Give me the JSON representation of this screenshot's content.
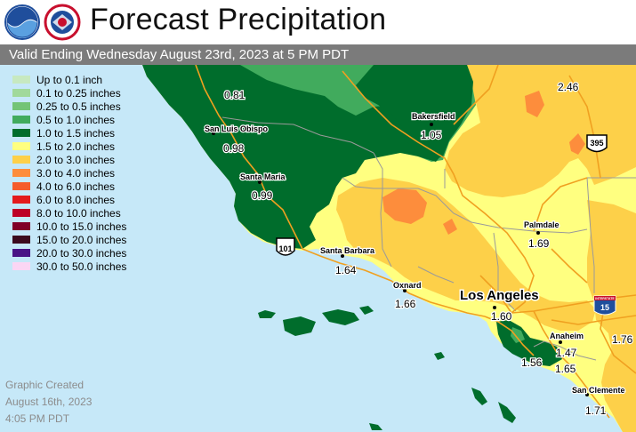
{
  "title": "Forecast Precipitation",
  "valid_text": "Valid Ending Wednesday August 23rd, 2023 at 5 PM PDT",
  "logos": {
    "left": "noaa-logo",
    "right": "nws-logo"
  },
  "legend": [
    {
      "label": "Up to 0.1 inch",
      "color": "#c7e9c0"
    },
    {
      "label": "0.1 to 0.25 inches",
      "color": "#a1d99b"
    },
    {
      "label": "0.25 to 0.5 inches",
      "color": "#74c476"
    },
    {
      "label": "0.5 to 1.0 inches",
      "color": "#41ab5d"
    },
    {
      "label": "1.0 to 1.5 inches",
      "color": "#006d2c"
    },
    {
      "label": "1.5 to 2.0 inches",
      "color": "#ffff80"
    },
    {
      "label": "2.0 to 3.0 inches",
      "color": "#fdd049"
    },
    {
      "label": "3.0 to 4.0 inches",
      "color": "#fd8d3c"
    },
    {
      "label": "4.0 to 6.0 inches",
      "color": "#f55c2b"
    },
    {
      "label": "6.0 to 8.0 inches",
      "color": "#e31a1c"
    },
    {
      "label": "8.0 to 10.0 inches",
      "color": "#bd0026"
    },
    {
      "label": "10.0 to 15.0 inches",
      "color": "#800026"
    },
    {
      "label": "15.0 to 20.0 inches",
      "color": "#3b0a1e"
    },
    {
      "label": "20.0 to 30.0 inches",
      "color": "#4a1486"
    },
    {
      "label": "30.0 to 50.0 inches",
      "color": "#fbd6f4"
    }
  ],
  "created": [
    "Graphic Created",
    "August 16th, 2023",
    "4:05 PM PDT"
  ],
  "cities": {
    "san_luis_obispo": "San Luis Obispo",
    "santa_maria": "Santa Maria",
    "bakersfield": "Bakersfield",
    "santa_barbara": "Santa Barbara",
    "palmdale": "Palmdale",
    "oxnard": "Oxnard",
    "los_angeles": "Los Angeles",
    "anaheim": "Anaheim",
    "san_clemente": "San Clemente"
  },
  "values": {
    "v1": "0.81",
    "v2": "0.98",
    "v3": "0.99",
    "v4": "1.05",
    "v5": "2.46",
    "v6": "1.64",
    "v7": "1.69",
    "v8": "1.66",
    "v9": "1.60",
    "v10": "1.47",
    "v11": "1.56",
    "v12": "1.65",
    "v13": "1.76",
    "v14": "1.71"
  },
  "highways": {
    "h101": "101",
    "h395": "395",
    "h15": "15",
    "interstate_label": "INTERSTATE"
  },
  "colors": {
    "ocean": "#c6e8f8",
    "dark_green": "#006d2c",
    "mid_green": "#41ab5d",
    "yellow": "#ffff80",
    "light_orange": "#fdd049",
    "orange": "#fd8d3c",
    "roads": "#f0a020"
  }
}
